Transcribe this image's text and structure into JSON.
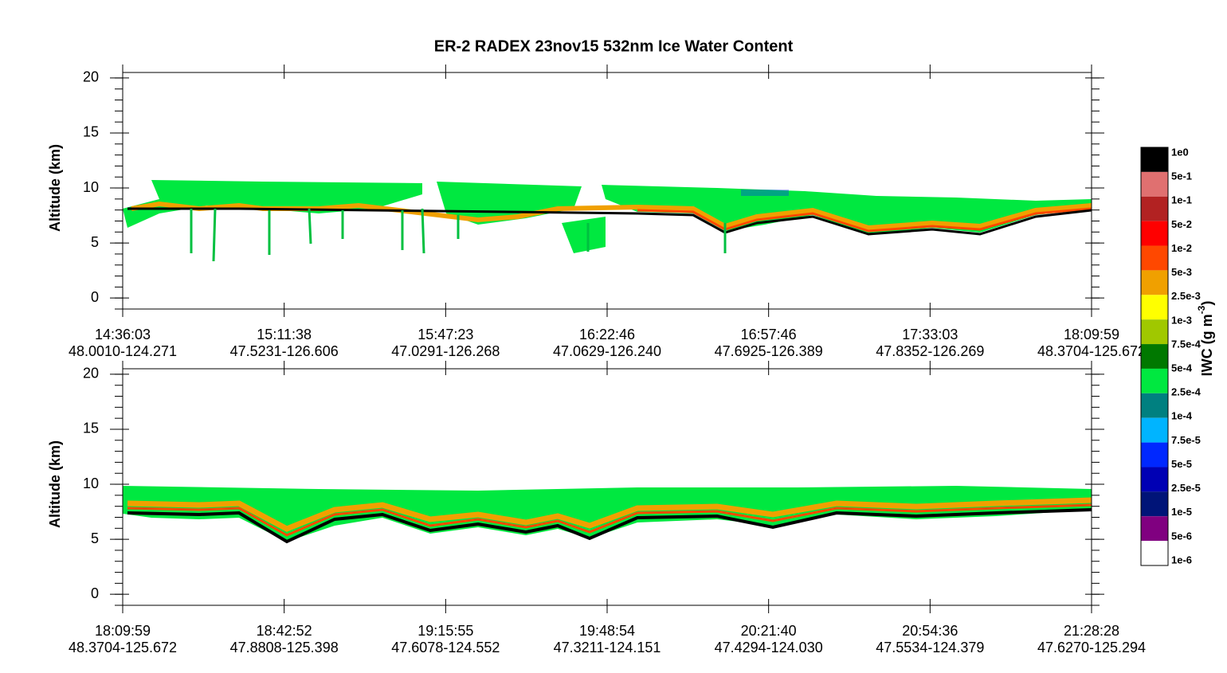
{
  "chart_data": {
    "type": "curtain",
    "title": "ER-2  RADEX  23nov15  532nm Ice Water Content",
    "colorbar": {
      "labels": [
        "1e0",
        "5e-1",
        "1e-1",
        "5e-2",
        "1e-2",
        "5e-3",
        "2.5e-3",
        "1e-3",
        "7.5e-4",
        "5e-4",
        "2.5e-4",
        "1e-4",
        "7.5e-5",
        "5e-5",
        "2.5e-5",
        "1e-5",
        "5e-6",
        "1e-6"
      ],
      "colors": [
        "#000000",
        "#e07070",
        "#b22222",
        "#ff0000",
        "#ff4800",
        "#f0a000",
        "#ffff00",
        "#a0c800",
        "#007800",
        "#00e840",
        "#008080",
        "#00b4ff",
        "#0028ff",
        "#0000b4",
        "#001478",
        "#800080",
        "#ffffff"
      ],
      "label": "IWC (g m",
      "label_exponent": "-3",
      "label_close": ")"
    },
    "panels": [
      {
        "y_label": "Altitude (km)",
        "ylim": [
          -1,
          20.5
        ],
        "yticks": [
          0,
          5,
          10,
          15,
          20
        ],
        "x_labels": [
          {
            "time": "14:36:03",
            "location": "48.0010-124.271"
          },
          {
            "time": "15:11:38",
            "location": "47.5231-126.606"
          },
          {
            "time": "15:47:23",
            "location": "47.0291-126.268"
          },
          {
            "time": "16:22:46",
            "location": "47.0629-126.240"
          },
          {
            "time": "16:57:46",
            "location": "47.6925-126.389"
          },
          {
            "time": "17:33:03",
            "location": "47.8352-126.269"
          },
          {
            "time": "18:09:59",
            "location": "48.3704-125.672"
          }
        ]
      },
      {
        "y_label": "Altitude (km)",
        "ylim": [
          -1,
          20.5
        ],
        "yticks": [
          0,
          5,
          10,
          15,
          20
        ],
        "x_labels": [
          {
            "time": "18:09:59",
            "location": "48.3704-125.672"
          },
          {
            "time": "18:42:52",
            "location": "47.8808-125.398"
          },
          {
            "time": "19:15:55",
            "location": "47.6078-124.552"
          },
          {
            "time": "19:48:54",
            "location": "47.3211-124.151"
          },
          {
            "time": "20:21:40",
            "location": "47.4294-124.030"
          },
          {
            "time": "20:54:36",
            "location": "47.5534-124.379"
          },
          {
            "time": "21:28:28",
            "location": "47.6270-125.294"
          }
        ]
      }
    ]
  }
}
